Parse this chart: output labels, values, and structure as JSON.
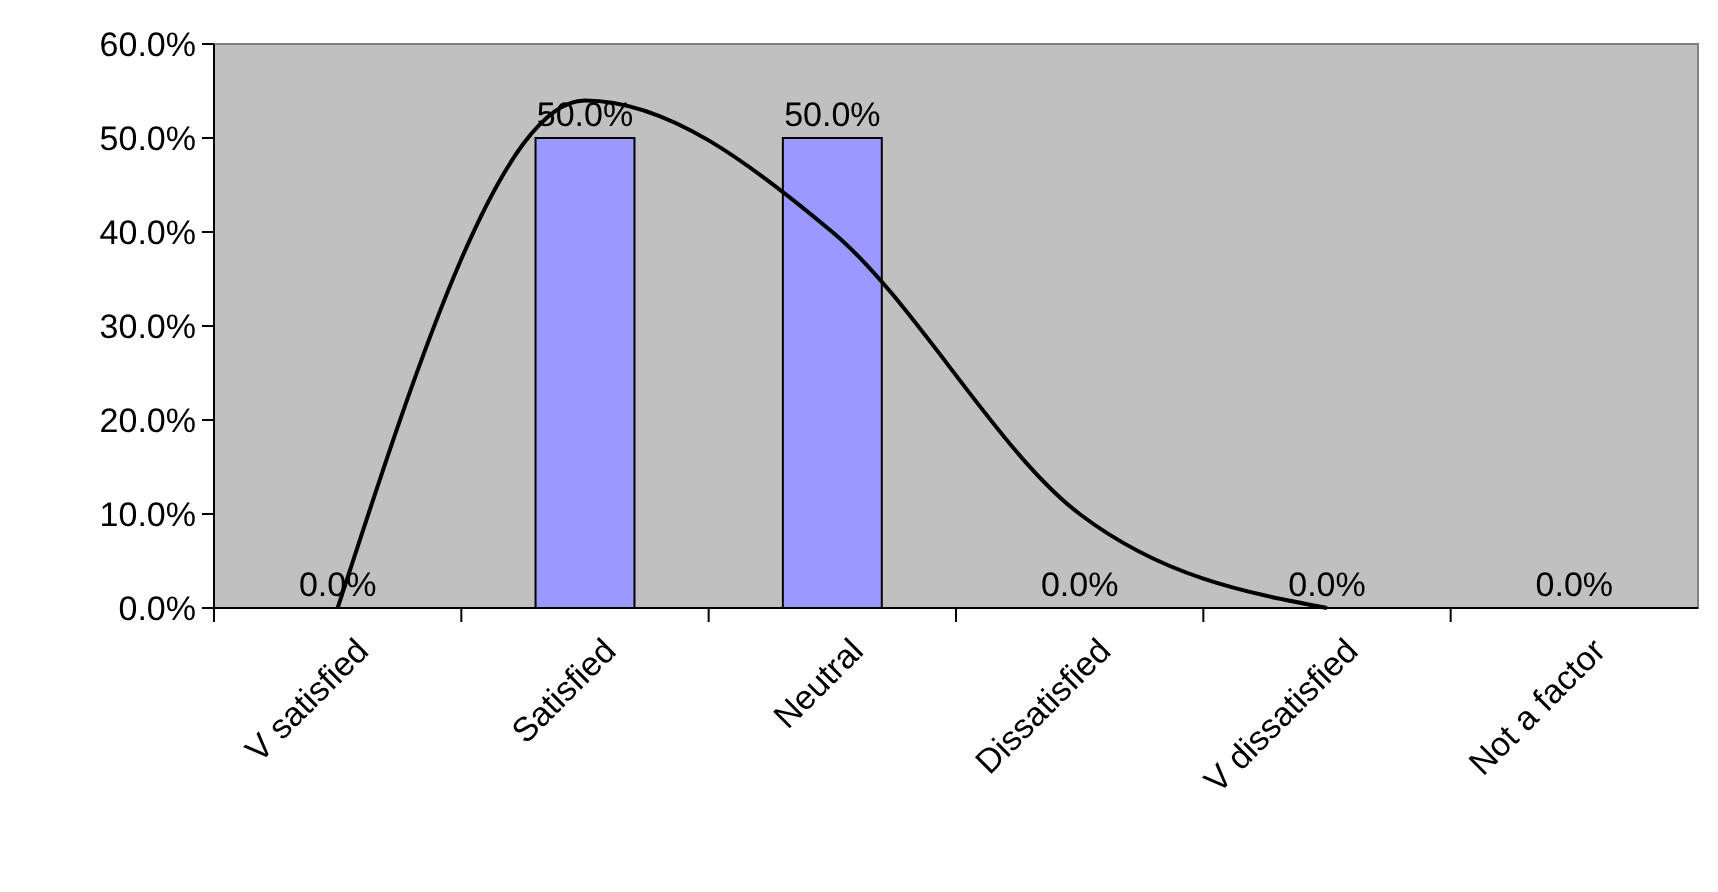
{
  "chart_data": {
    "type": "bar",
    "categories": [
      "V satisfied",
      "Satisfied",
      "Neutral",
      "Dissatisfied",
      "V dissatisfied",
      "Not a factor"
    ],
    "series": [
      {
        "color": "#9999ff",
        "values": [
          0,
          50,
          50,
          0,
          0,
          0
        ],
        "value_labels": [
          "0.0%",
          "50.0%",
          "50.0%",
          "0.0%",
          "0.0%",
          "0.0%"
        ]
      },
      {
        "type": "line",
        "color": "#000000",
        "values": [
          0,
          54,
          40,
          10,
          0,
          null
        ]
      }
    ],
    "ylim": [
      0,
      60
    ],
    "yticks": [
      {
        "value": 0,
        "label": "0.0%"
      },
      {
        "value": 10,
        "label": "10.0%"
      },
      {
        "value": 20,
        "label": "20.0%"
      },
      {
        "value": 30,
        "label": "30.0%"
      },
      {
        "value": 40,
        "label": "40.0%"
      },
      {
        "value": 50,
        "label": "50.0%"
      },
      {
        "value": 60,
        "label": "60.0%"
      }
    ],
    "grid": false,
    "marker": "none",
    "line_style": "solid"
  }
}
